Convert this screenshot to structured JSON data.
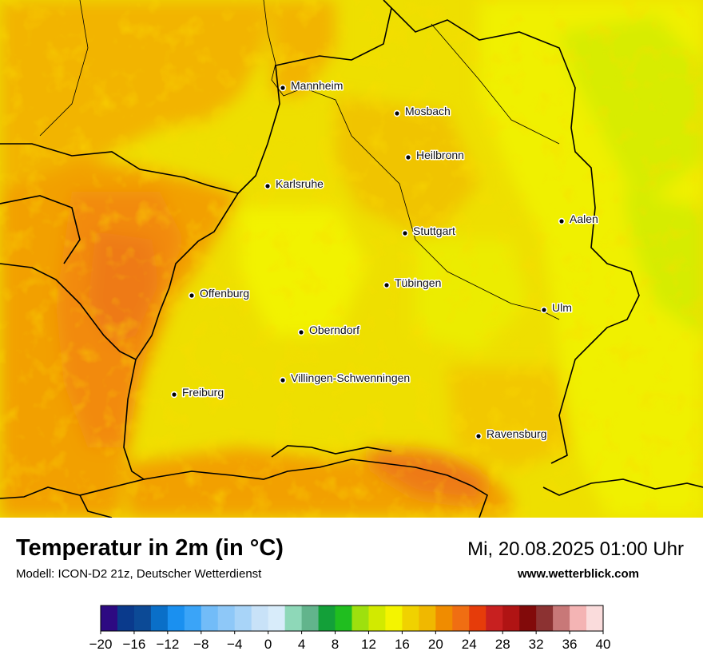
{
  "map": {
    "cities": [
      {
        "name": "Mannheim"
      },
      {
        "name": "Mosbach"
      },
      {
        "name": "Heilbronn"
      },
      {
        "name": "Karlsruhe"
      },
      {
        "name": "Aalen"
      },
      {
        "name": "Stuttgart"
      },
      {
        "name": "Tübingen"
      },
      {
        "name": "Offenburg"
      },
      {
        "name": "Ulm"
      },
      {
        "name": "Oberndorf"
      },
      {
        "name": "Villingen-Schwenningen"
      },
      {
        "name": "Freiburg"
      },
      {
        "name": "Ravensburg"
      }
    ]
  },
  "header": {
    "title": "Temperatur in 2m (in °C)",
    "subtitle": "Modell: ICON-D2 21z, Deutscher Wetterdienst",
    "datetime": "Mi, 20.08.2025 01:00 Uhr",
    "site": "www.wetterblick.com"
  },
  "legend": {
    "ticks": [
      "−20",
      "−16",
      "−12",
      "−8",
      "−4",
      "0",
      "4",
      "8",
      "12",
      "16",
      "20",
      "24",
      "28",
      "32",
      "36",
      "40"
    ],
    "colors": [
      "#2d0a82",
      "#0a3a8c",
      "#0c4a96",
      "#0a6fc8",
      "#1a90f0",
      "#3aa4f8",
      "#72bcf8",
      "#8ec8f8",
      "#a8d4f8",
      "#c8e2f8",
      "#d8ecfa",
      "#8ed8b8",
      "#62b48c",
      "#13a039",
      "#20be1f",
      "#9ee00e",
      "#d2ea00",
      "#f4f400",
      "#f0d200",
      "#f0b800",
      "#f08c00",
      "#f06e12",
      "#e63c0a",
      "#c82020",
      "#b01414",
      "#820a0a",
      "#8c3232",
      "#c87878",
      "#f4b4b4",
      "#fadcdc"
    ]
  }
}
